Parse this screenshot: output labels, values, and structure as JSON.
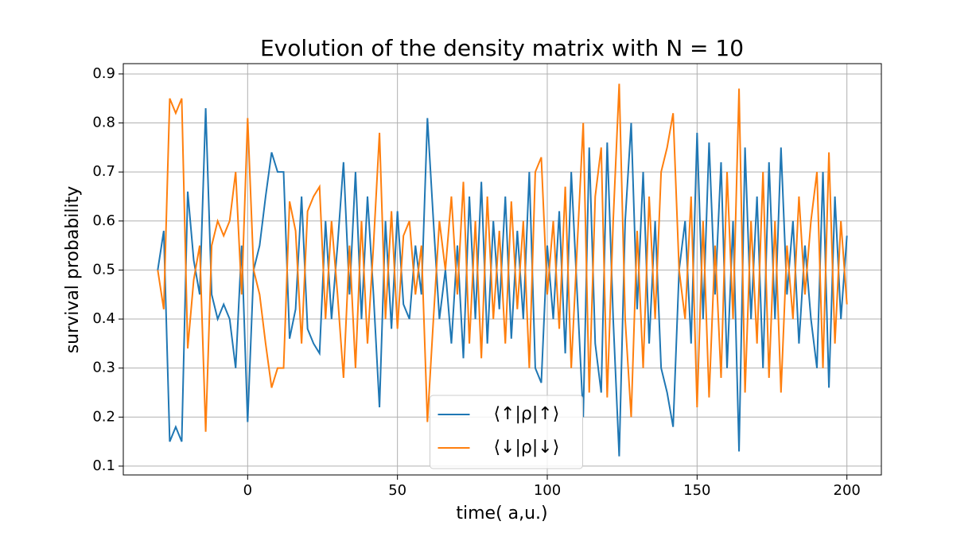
{
  "chart_data": {
    "type": "line",
    "title": "Evolution of the density matrix with N = 10",
    "xlabel": "time( a,u.)",
    "ylabel": "survival probability",
    "x": [
      -30,
      -28,
      -26,
      -24,
      -22,
      -20,
      -18,
      -16,
      -14,
      -12,
      -10,
      -8,
      -6,
      -4,
      -2,
      0,
      2,
      4,
      6,
      8,
      10,
      12,
      14,
      16,
      18,
      20,
      22,
      24,
      26,
      28,
      30,
      32,
      34,
      36,
      38,
      40,
      42,
      44,
      46,
      48,
      50,
      52,
      54,
      56,
      58,
      60,
      62,
      64,
      66,
      68,
      70,
      72,
      74,
      76,
      78,
      80,
      82,
      84,
      86,
      88,
      90,
      92,
      94,
      96,
      98,
      100,
      102,
      104,
      106,
      108,
      110,
      112,
      114,
      116,
      118,
      120,
      122,
      124,
      126,
      128,
      130,
      132,
      134,
      136,
      138,
      140,
      142,
      144,
      146,
      148,
      150,
      152,
      154,
      156,
      158,
      160,
      162,
      164,
      166,
      168,
      170,
      172,
      174,
      176,
      178,
      180,
      182,
      184,
      186,
      188,
      190,
      192,
      194,
      196,
      198,
      200
    ],
    "series": [
      {
        "name": "⟨↑|ρ|↑⟩",
        "color": "#1f77b4",
        "values": [
          0.5,
          0.58,
          0.15,
          0.18,
          0.15,
          0.66,
          0.52,
          0.45,
          0.83,
          0.45,
          0.4,
          0.43,
          0.4,
          0.3,
          0.55,
          0.19,
          0.5,
          0.55,
          0.65,
          0.74,
          0.7,
          0.7,
          0.36,
          0.42,
          0.65,
          0.38,
          0.35,
          0.33,
          0.6,
          0.4,
          0.55,
          0.72,
          0.45,
          0.7,
          0.4,
          0.65,
          0.45,
          0.22,
          0.6,
          0.38,
          0.62,
          0.43,
          0.4,
          0.55,
          0.45,
          0.81,
          0.6,
          0.4,
          0.5,
          0.35,
          0.55,
          0.32,
          0.65,
          0.4,
          0.68,
          0.35,
          0.6,
          0.42,
          0.65,
          0.36,
          0.58,
          0.4,
          0.7,
          0.3,
          0.27,
          0.55,
          0.4,
          0.62,
          0.33,
          0.7,
          0.45,
          0.2,
          0.75,
          0.35,
          0.25,
          0.76,
          0.4,
          0.12,
          0.6,
          0.8,
          0.42,
          0.7,
          0.35,
          0.6,
          0.3,
          0.25,
          0.18,
          0.5,
          0.6,
          0.35,
          0.78,
          0.4,
          0.76,
          0.45,
          0.72,
          0.3,
          0.6,
          0.13,
          0.75,
          0.4,
          0.65,
          0.3,
          0.72,
          0.4,
          0.75,
          0.45,
          0.6,
          0.35,
          0.55,
          0.4,
          0.3,
          0.7,
          0.26,
          0.65,
          0.4,
          0.57
        ]
      },
      {
        "name": "⟨↓|ρ|↓⟩",
        "color": "#ff7f0e",
        "values": [
          0.5,
          0.42,
          0.85,
          0.82,
          0.85,
          0.34,
          0.48,
          0.55,
          0.17,
          0.55,
          0.6,
          0.57,
          0.6,
          0.7,
          0.45,
          0.81,
          0.5,
          0.45,
          0.35,
          0.26,
          0.3,
          0.3,
          0.64,
          0.58,
          0.35,
          0.62,
          0.65,
          0.67,
          0.4,
          0.6,
          0.45,
          0.28,
          0.55,
          0.3,
          0.6,
          0.35,
          0.55,
          0.78,
          0.4,
          0.62,
          0.38,
          0.57,
          0.6,
          0.45,
          0.55,
          0.19,
          0.4,
          0.6,
          0.5,
          0.65,
          0.45,
          0.68,
          0.35,
          0.6,
          0.32,
          0.65,
          0.4,
          0.58,
          0.35,
          0.64,
          0.42,
          0.6,
          0.3,
          0.7,
          0.73,
          0.45,
          0.6,
          0.38,
          0.67,
          0.3,
          0.55,
          0.8,
          0.25,
          0.65,
          0.75,
          0.24,
          0.6,
          0.88,
          0.4,
          0.2,
          0.58,
          0.3,
          0.65,
          0.4,
          0.7,
          0.75,
          0.82,
          0.5,
          0.4,
          0.65,
          0.22,
          0.6,
          0.24,
          0.55,
          0.28,
          0.7,
          0.4,
          0.87,
          0.25,
          0.6,
          0.35,
          0.7,
          0.28,
          0.6,
          0.25,
          0.55,
          0.4,
          0.65,
          0.45,
          0.6,
          0.7,
          0.3,
          0.74,
          0.35,
          0.6,
          0.43
        ]
      }
    ],
    "xlim": [
      -41.5,
      211.5
    ],
    "ylim": [
      0.082,
      0.921
    ],
    "xticks": [
      0,
      50,
      100,
      150,
      200
    ],
    "yticks": [
      0.1,
      0.2,
      0.3,
      0.4,
      0.5,
      0.6,
      0.7,
      0.8,
      0.9
    ],
    "grid": true,
    "legend": "lower center"
  }
}
